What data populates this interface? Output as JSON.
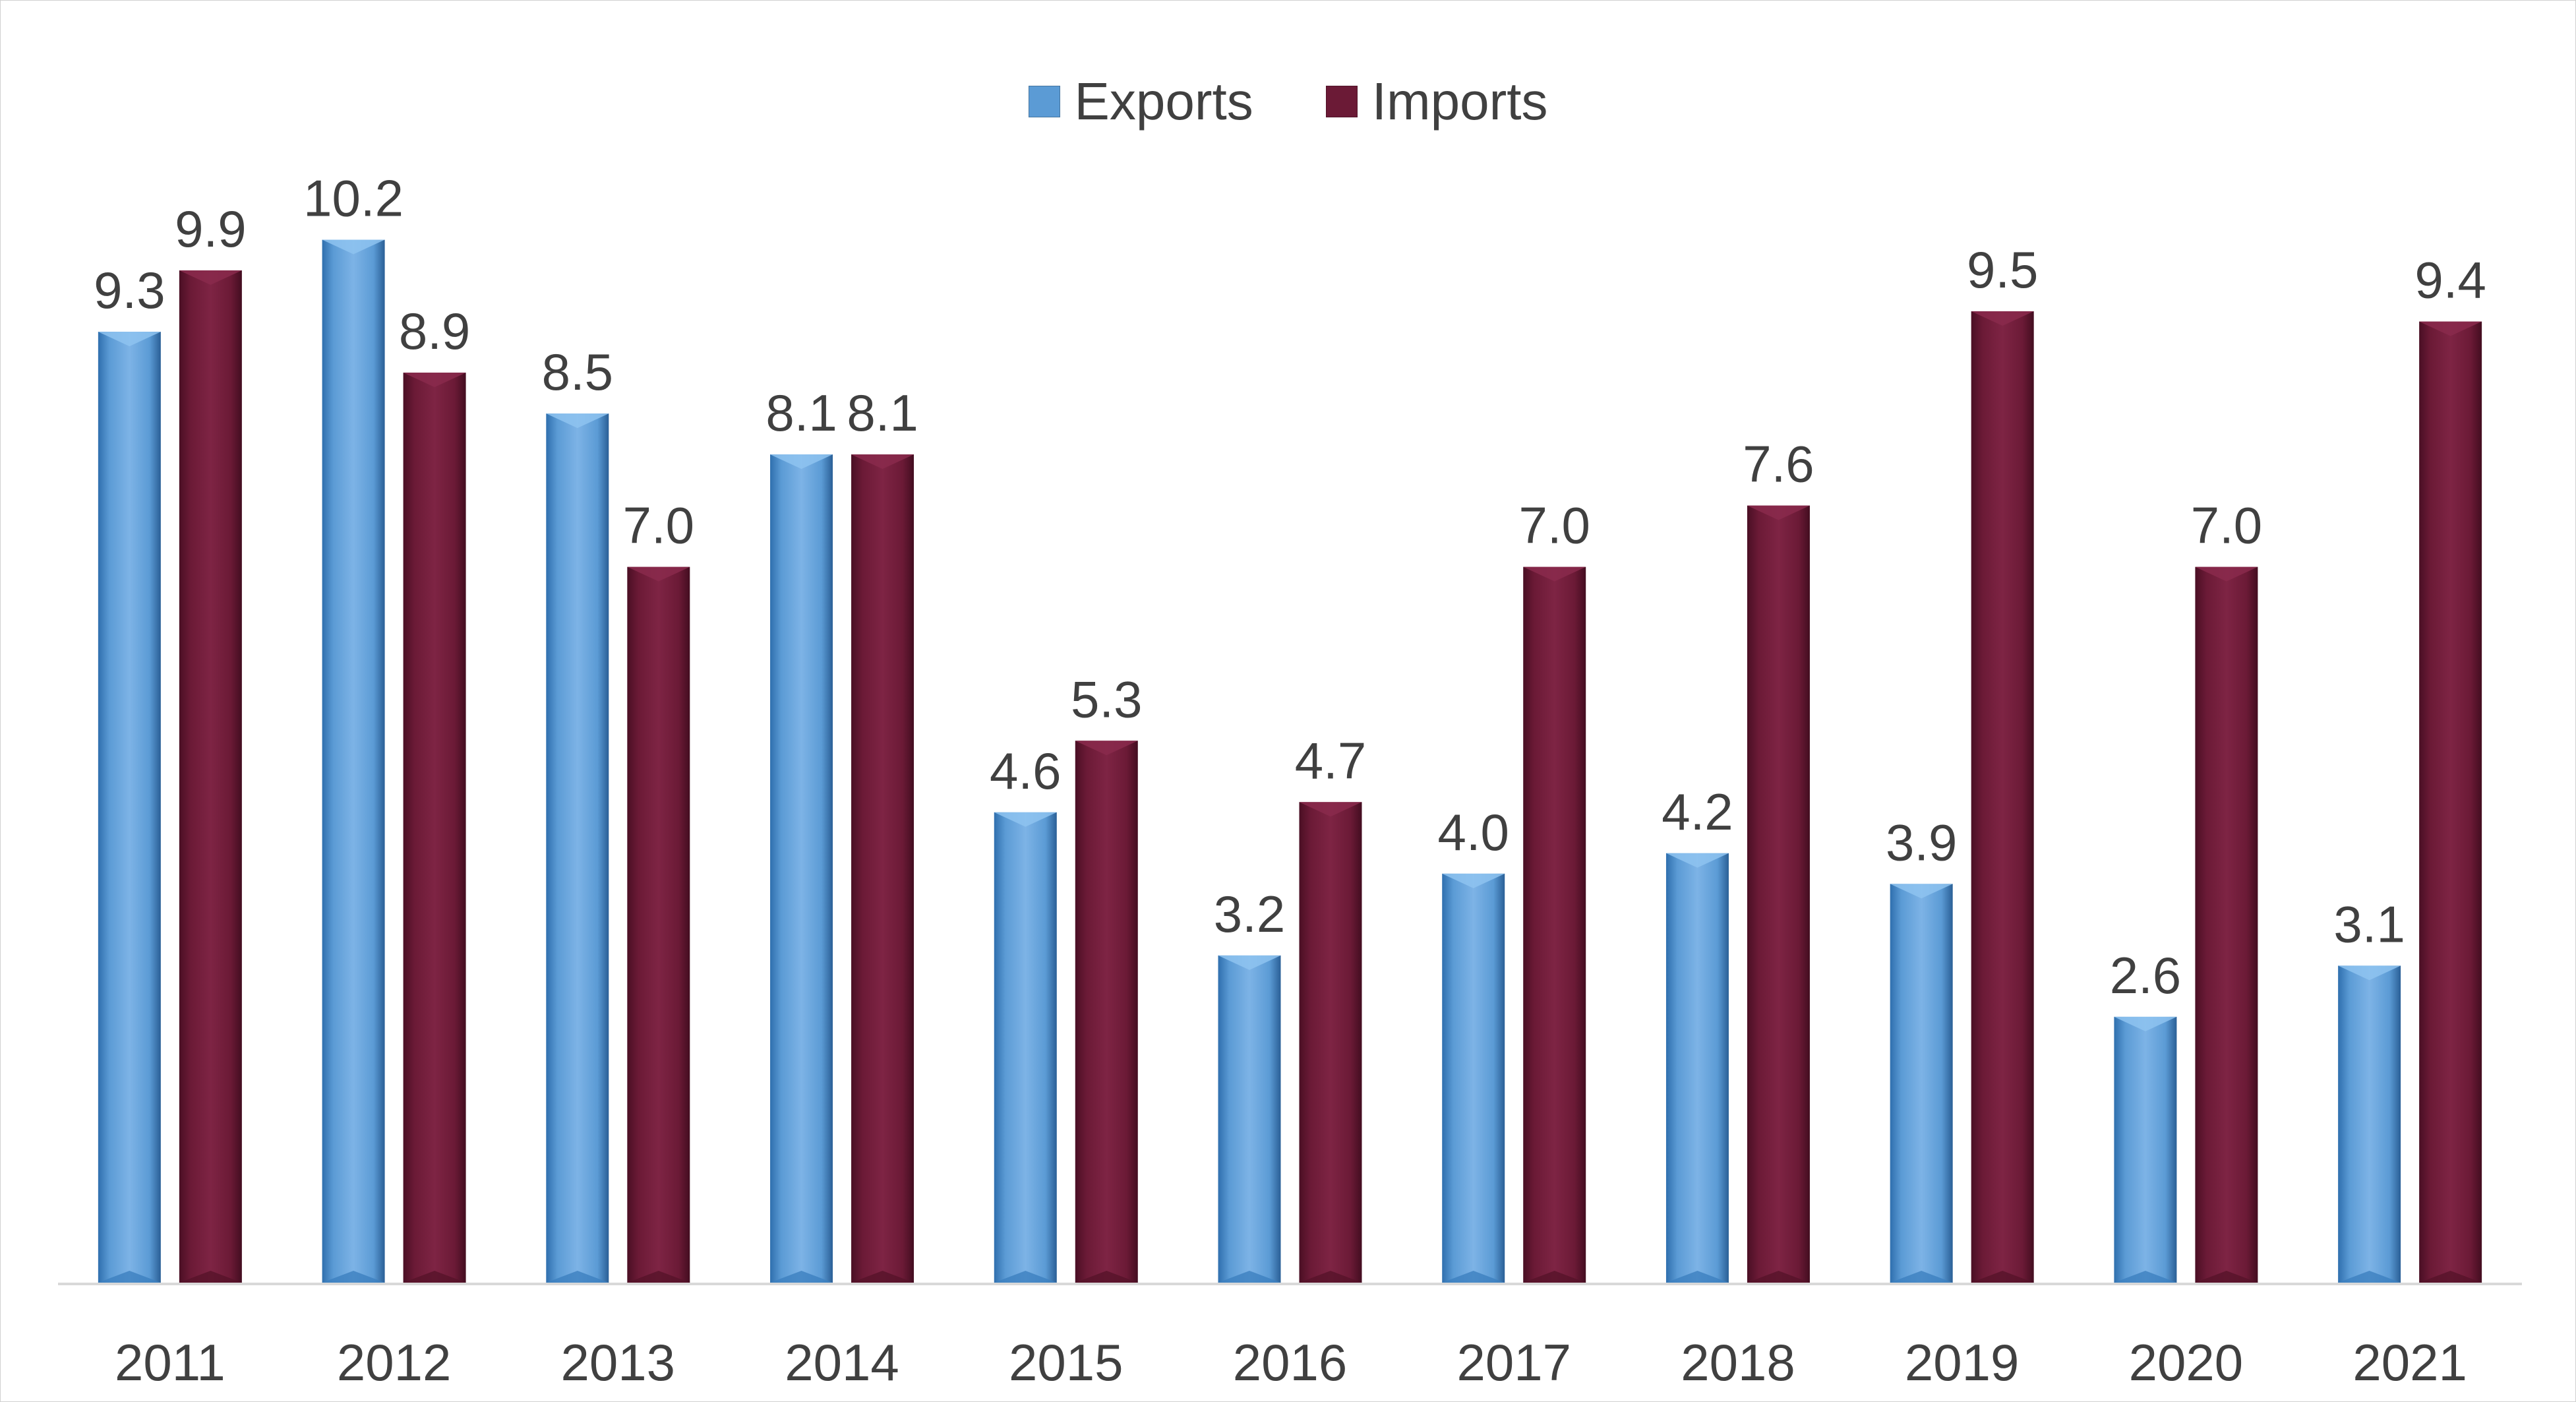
{
  "chart_data": {
    "type": "bar",
    "title": "",
    "xlabel": "",
    "ylabel": "",
    "ylim": [
      0,
      10.7
    ],
    "grid": false,
    "legend_position": "top-center",
    "categories": [
      "2011",
      "2012",
      "2013",
      "2014",
      "2015",
      "2016",
      "2017",
      "2018",
      "2019",
      "2020",
      "2021"
    ],
    "series": [
      {
        "name": "Exports",
        "color": "#5b9bd5",
        "values": [
          9.3,
          10.2,
          8.5,
          8.1,
          4.6,
          3.2,
          4.0,
          4.2,
          3.9,
          2.6,
          3.1
        ],
        "labels": [
          "9.3",
          "10.2",
          "8.5",
          "8.1",
          "4.6",
          "3.2",
          "4.0",
          "4.2",
          "3.9",
          "2.6",
          "3.1"
        ]
      },
      {
        "name": "Imports",
        "color": "#6b1a36",
        "values": [
          9.9,
          8.9,
          7.0,
          8.1,
          5.3,
          4.7,
          7.0,
          7.6,
          9.5,
          7.0,
          9.4
        ],
        "labels": [
          "9.9",
          "8.9",
          "7.0",
          "8.1",
          "5.3",
          "4.7",
          "7.0",
          "7.6",
          "9.5",
          "7.0",
          "9.4"
        ]
      }
    ]
  }
}
